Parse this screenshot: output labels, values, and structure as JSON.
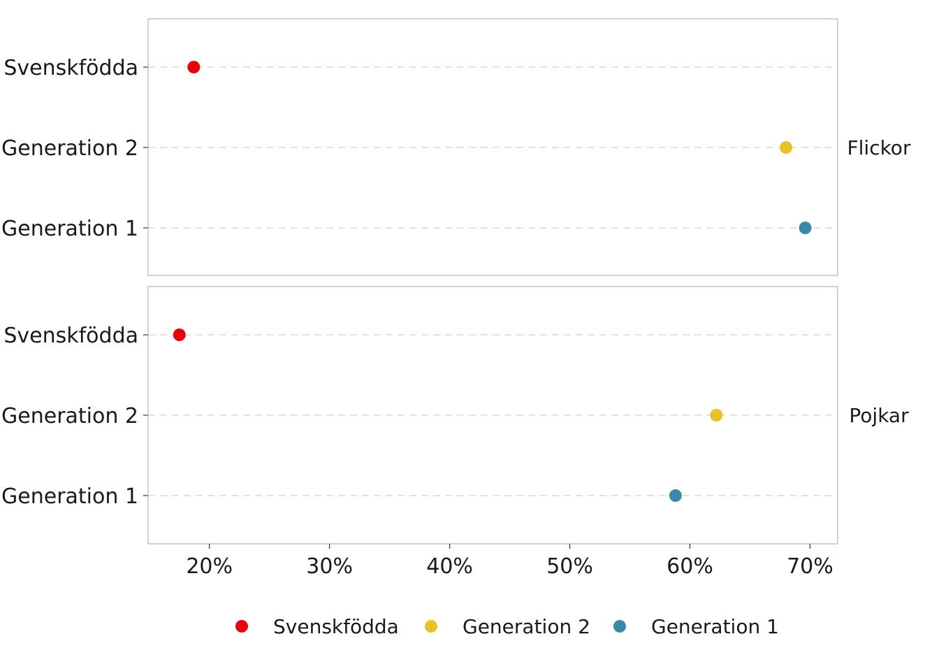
{
  "chart_data": {
    "type": "scatter",
    "categories": [
      "Generation 1",
      "Generation 2",
      "Svenskfödda"
    ],
    "facets": [
      {
        "label": "Flickor",
        "points": [
          {
            "category": "Svenskfödda",
            "value": 18.7
          },
          {
            "category": "Generation 2",
            "value": 68.0
          },
          {
            "category": "Generation 1",
            "value": 69.6
          }
        ]
      },
      {
        "label": "Pojkar",
        "points": [
          {
            "category": "Svenskfödda",
            "value": 17.5
          },
          {
            "category": "Generation 2",
            "value": 62.2
          },
          {
            "category": "Generation 1",
            "value": 58.8
          }
        ]
      }
    ],
    "x_ticks": [
      20,
      30,
      40,
      50,
      60,
      70
    ],
    "x_tick_labels": [
      "20%",
      "30%",
      "40%",
      "50%",
      "60%",
      "70%"
    ],
    "xlim": [
      14.9,
      72.3
    ],
    "grid": "dashed horizontal",
    "legend": {
      "position": "bottom",
      "items": [
        {
          "label": "Svenskfödda",
          "color": "#e8000b"
        },
        {
          "label": "Generation 2",
          "color": "#e6c229"
        },
        {
          "label": "Generation 1",
          "color": "#3a89a8"
        }
      ]
    },
    "colors": {
      "Svenskfödda": "#e8000b",
      "Generation 2": "#e6c229",
      "Generation 1": "#3a89a8"
    }
  }
}
